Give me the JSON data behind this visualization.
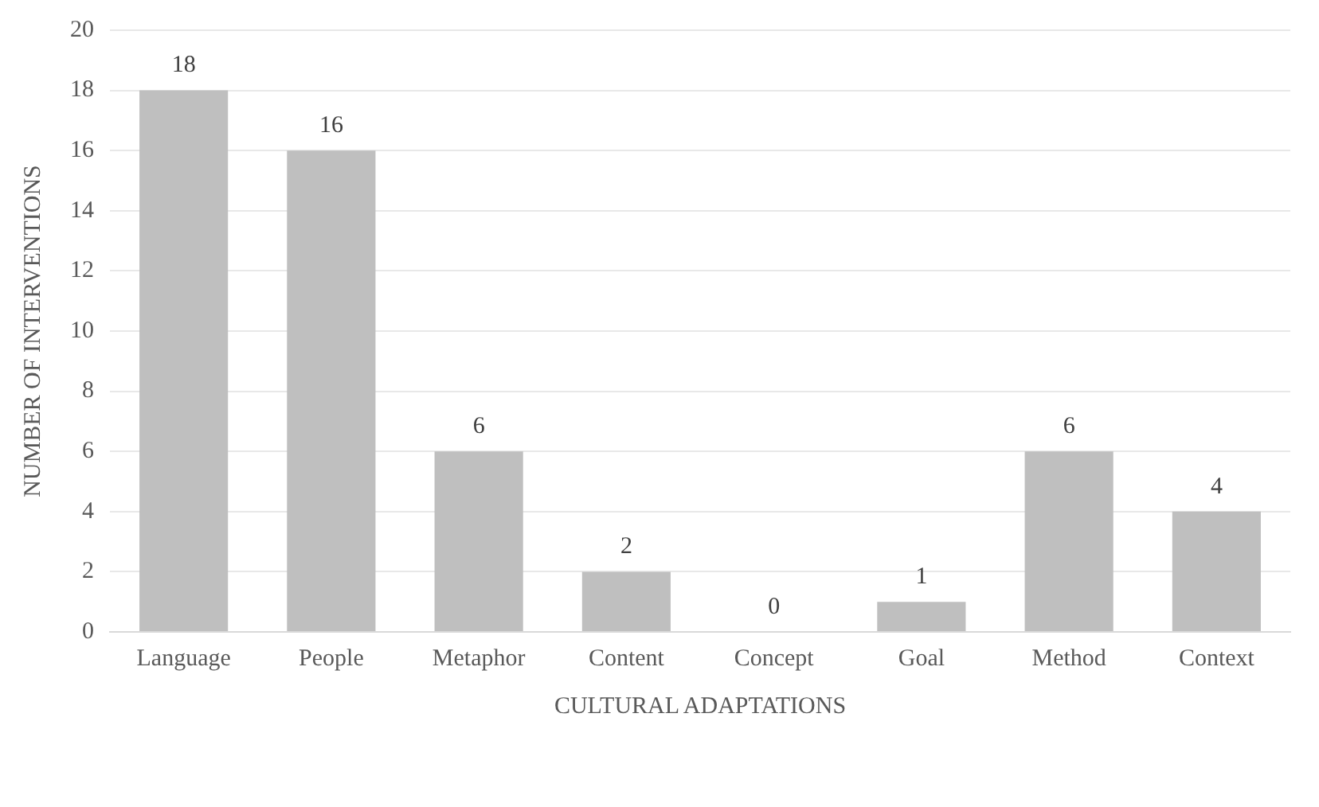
{
  "chart_data": {
    "type": "bar",
    "xlabel": "CULTURAL ADAPTATIONS",
    "ylabel": "NUMBER OF INTERVENTIONS",
    "categories": [
      "Language",
      "People",
      "Metaphor",
      "Content",
      "Concept",
      "Goal",
      "Method",
      "Context"
    ],
    "values": [
      18,
      16,
      6,
      2,
      0,
      1,
      6,
      4
    ],
    "color": "#bfbfbf",
    "ylim": [
      0,
      20
    ],
    "yticks": [
      0,
      2,
      4,
      6,
      8,
      10,
      12,
      14,
      16,
      18,
      20
    ],
    "grid": "y",
    "data_labels": true,
    "legend": false
  }
}
